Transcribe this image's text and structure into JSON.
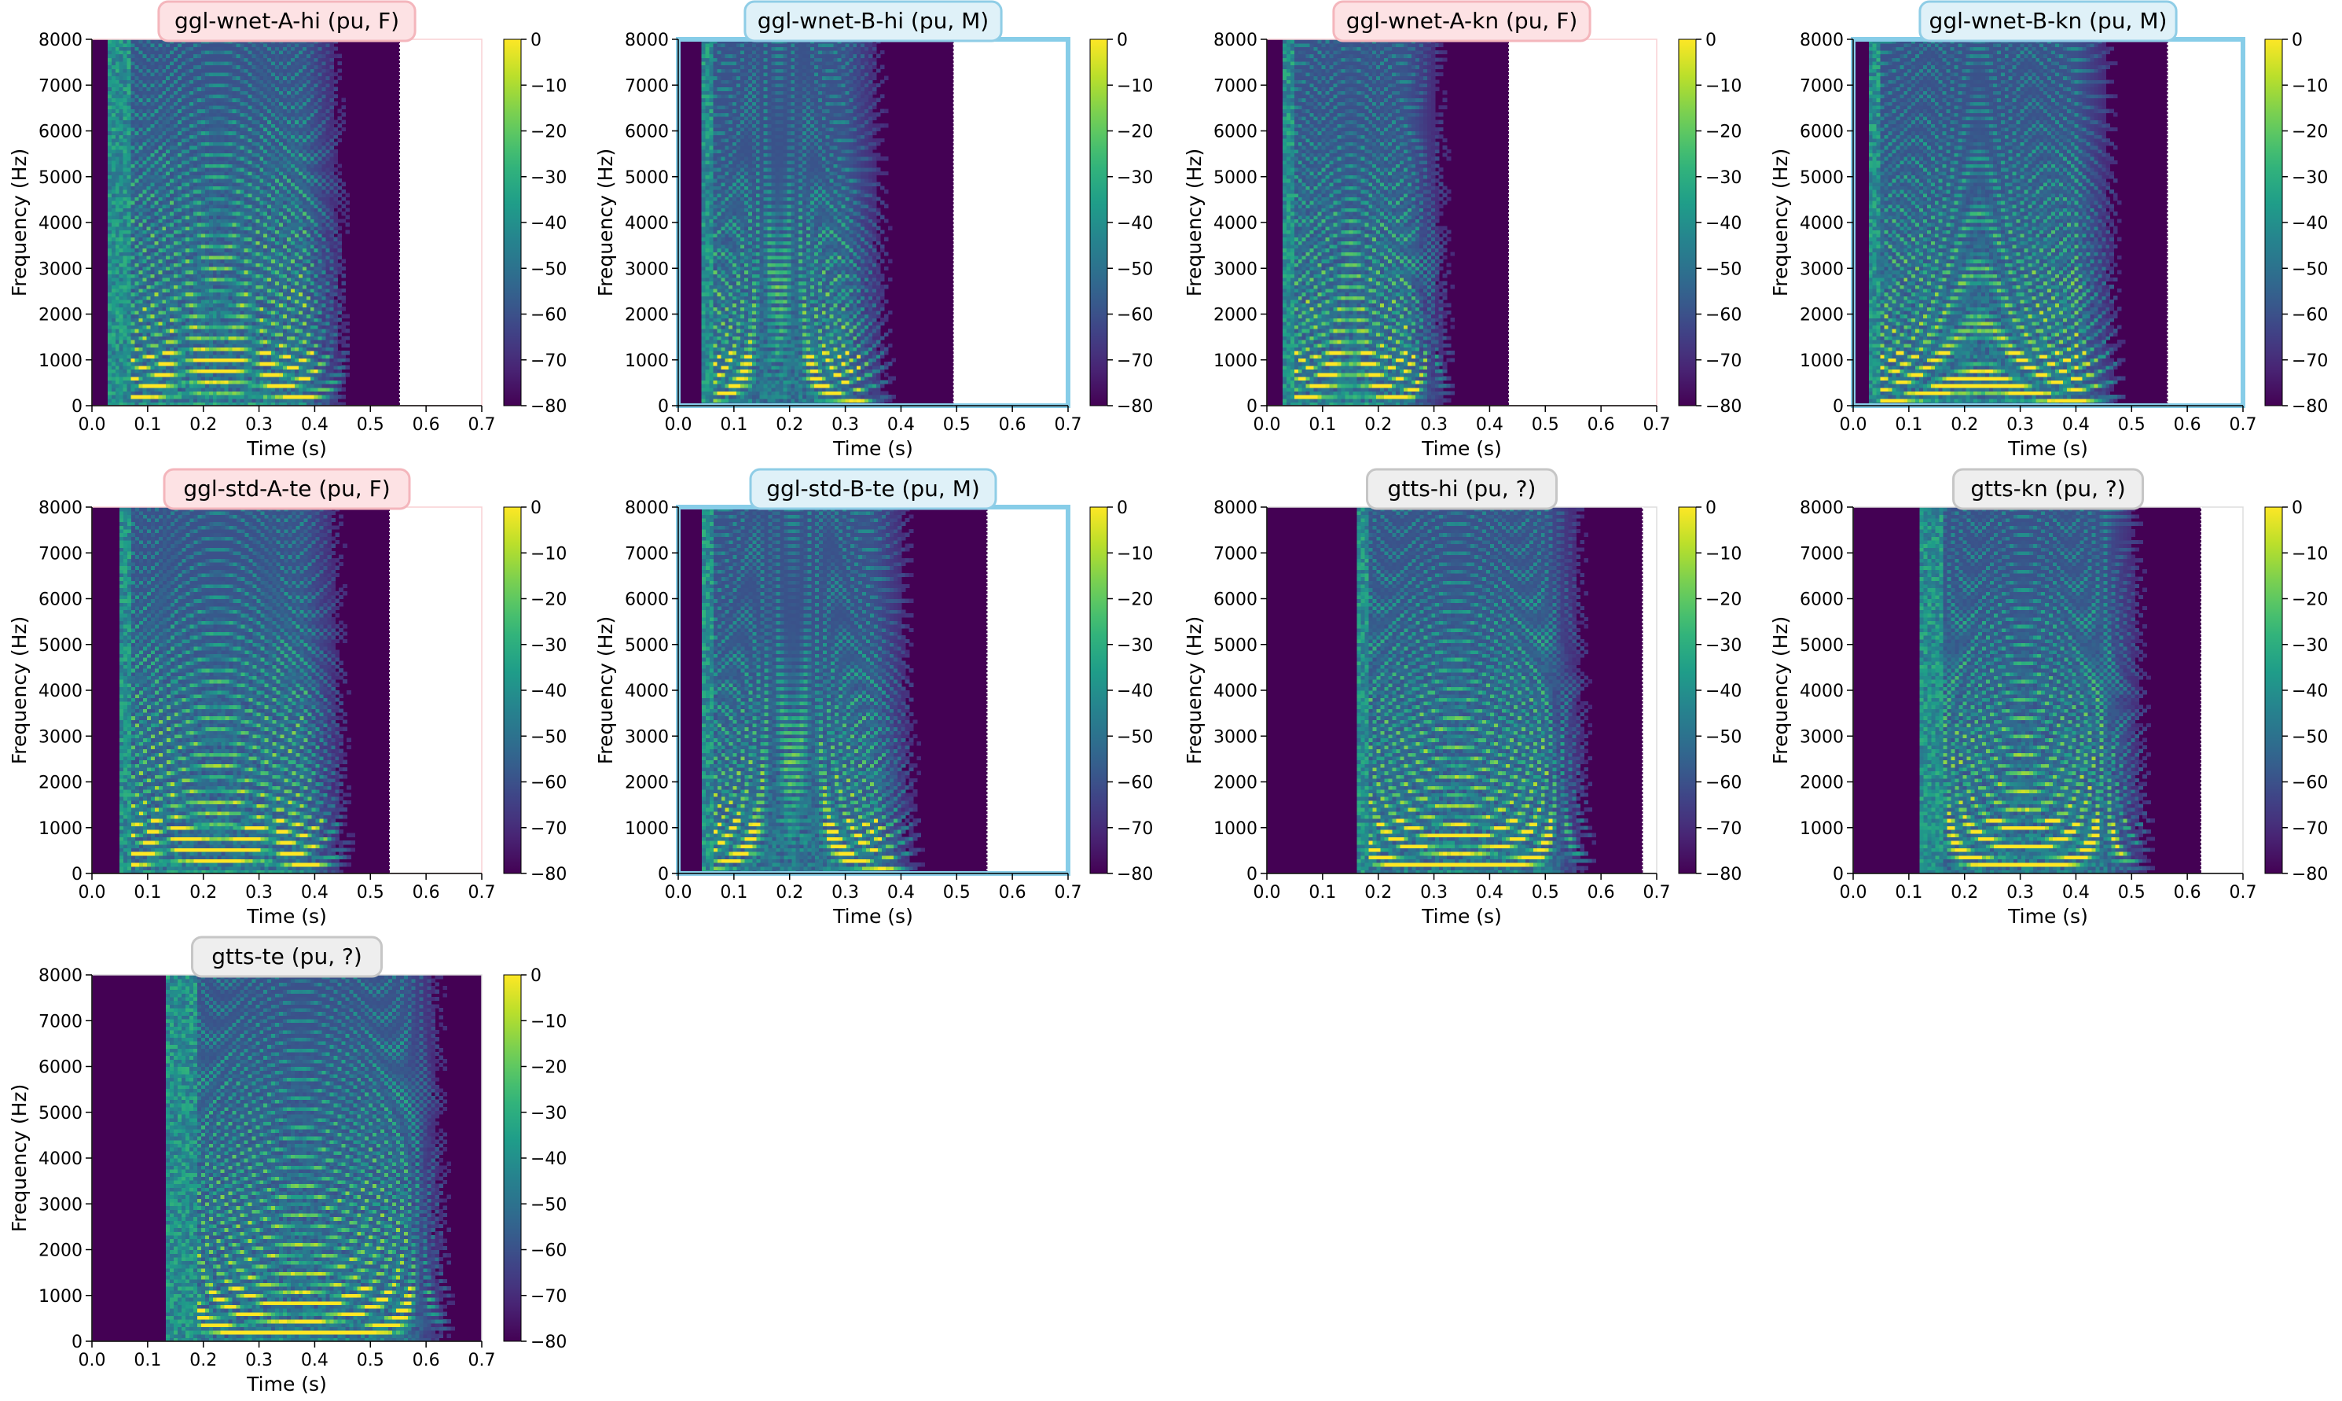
{
  "chart_data": {
    "type": "heatmap",
    "axes": {
      "xlabel": "Time (s)",
      "ylabel": "Frequency (Hz)",
      "xlim": [
        0.0,
        0.7
      ],
      "ylim": [
        0,
        8000
      ],
      "xticks": [
        "0.0",
        "0.1",
        "0.2",
        "0.3",
        "0.4",
        "0.5",
        "0.6",
        "0.7"
      ],
      "yticks": [
        "0",
        "1000",
        "2000",
        "3000",
        "4000",
        "5000",
        "6000",
        "7000",
        "8000"
      ]
    },
    "colorbar": {
      "colormap": "viridis",
      "range": [
        -80,
        0
      ],
      "ticks": [
        "0",
        "−10",
        "−20",
        "−30",
        "−40",
        "−50",
        "−60",
        "−70",
        "−80"
      ]
    },
    "badge_styles": {
      "F": {
        "fill": "#fde2e4",
        "stroke": "#f4b6bc"
      },
      "M": {
        "fill": "#dff1f8",
        "stroke": "#8fcde6"
      },
      "?": {
        "fill": "#eeeeee",
        "stroke": "#c6c6c6"
      }
    },
    "panels": [
      {
        "title": "ggl-wnet-A-hi (pu, F)",
        "gender": "F",
        "duration": 0.553,
        "onset": 0.03,
        "voice_start": 0.07,
        "voice_end": 0.38,
        "pitch": 200,
        "bright": 0.6,
        "highlight": false
      },
      {
        "title": "ggl-wnet-B-hi (pu, M)",
        "gender": "M",
        "duration": 0.495,
        "onset": 0.04,
        "voice_start": 0.06,
        "voice_end": 0.3,
        "pitch": 130,
        "bright": 0.4,
        "highlight": true
      },
      {
        "title": "ggl-wnet-A-kn (pu, F)",
        "gender": "F",
        "duration": 0.435,
        "onset": 0.03,
        "voice_start": 0.05,
        "voice_end": 0.25,
        "pitch": 190,
        "bright": 0.5,
        "highlight": false
      },
      {
        "title": "ggl-wnet-B-kn (pu, M)",
        "gender": "M",
        "duration": 0.565,
        "onset": 0.03,
        "voice_start": 0.05,
        "voice_end": 0.4,
        "pitch": 120,
        "bright": 0.5,
        "highlight": true
      },
      {
        "title": "ggl-std-A-te (pu, F)",
        "gender": "F",
        "duration": 0.535,
        "onset": 0.05,
        "voice_start": 0.07,
        "voice_end": 0.38,
        "pitch": 210,
        "bright": 0.55,
        "highlight": false
      },
      {
        "title": "ggl-std-B-te (pu, M)",
        "gender": "M",
        "duration": 0.555,
        "onset": 0.04,
        "voice_start": 0.06,
        "voice_end": 0.35,
        "pitch": 130,
        "bright": 0.4,
        "highlight": true
      },
      {
        "title": "gtts-hi (pu, ?)",
        "gender": "?",
        "duration": 0.675,
        "onset": 0.16,
        "voice_start": 0.18,
        "voice_end": 0.5,
        "pitch": 170,
        "bright": 0.55,
        "highlight": false
      },
      {
        "title": "gtts-kn (pu, ?)",
        "gender": "?",
        "duration": 0.625,
        "onset": 0.12,
        "voice_start": 0.16,
        "voice_end": 0.45,
        "pitch": 160,
        "bright": 0.55,
        "highlight": false
      },
      {
        "title": "gtts-te (pu, ?)",
        "gender": "?",
        "duration": 0.7,
        "onset": 0.13,
        "voice_start": 0.19,
        "voice_end": 0.56,
        "pitch": 170,
        "bright": 0.6,
        "highlight": false
      }
    ]
  }
}
